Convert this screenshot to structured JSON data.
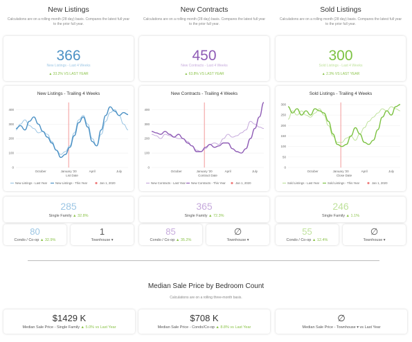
{
  "columns": [
    {
      "title": "New Listings",
      "subtitle": "Calculations are on a rolling month (28 day) basis. Compares the latest full year to the prior full year.",
      "color": "#4a90c4",
      "light_color": "#9cc6e4",
      "stat": {
        "value": "366",
        "label": "New Listings - Last 4 Weeks",
        "change": "▲ 33.2% VS LAST YEAR"
      },
      "single_family": {
        "value": "285",
        "label": "Single Family",
        "change": "▲ 32.8%"
      },
      "condo": {
        "value": "80",
        "label": "Condo / Co-op",
        "change": "▲ 32.9%"
      },
      "townhouse": {
        "value": "1",
        "label": "Townhouse ▾",
        "change": ""
      }
    },
    {
      "title": "New Contracts",
      "subtitle": "Calculations are on a rolling month (28 day) basis. Compares the latest full year to the prior full year.",
      "color": "#8e5bb5",
      "light_color": "#c6aadc",
      "stat": {
        "value": "450",
        "label": "New Contracts - Last 4 Weeks",
        "change": "▲ 63.8% VS LAST YEAR"
      },
      "single_family": {
        "value": "365",
        "label": "Single Family",
        "change": "▲ 72.3%"
      },
      "condo": {
        "value": "85",
        "label": "Condo / Co-op",
        "change": "▲ 35.2%"
      },
      "townhouse": {
        "value": "∅",
        "label": "Townhouse ▾",
        "change": ""
      }
    },
    {
      "title": "Sold Listings",
      "subtitle": "Calculations are on a rolling month (28 day) basis. Compares the latest full year to the prior full year.",
      "color": "#7cc242",
      "light_color": "#bfe29c",
      "stat": {
        "value": "300",
        "label": "Sold Listings - Last 4 Weeks",
        "change": "▲ 2.3% VS LAST YEAR"
      },
      "single_family": {
        "value": "246",
        "label": "Single Family",
        "change": "▲ 1.1%"
      },
      "condo": {
        "value": "55",
        "label": "Condo / Co-op",
        "change": "▲ 12.4%"
      },
      "townhouse": {
        "value": "∅",
        "label": "Townhouse ▾",
        "change": ""
      }
    }
  ],
  "chart_data": [
    {
      "type": "line",
      "title": "New Listings - Trailing 4 Weeks",
      "xlabel": "List Date",
      "x_ticks": [
        "October",
        "January '20",
        "April",
        "July"
      ],
      "y_ticks": [
        0,
        100,
        200,
        300,
        400
      ],
      "ylim": [
        0,
        450
      ],
      "marker_label": "Jan 1, 2020",
      "marker_x": 0.47,
      "series": [
        {
          "name": "New Listings - Last Year",
          "values": [
            260,
            300,
            330,
            290,
            270,
            240,
            250,
            230,
            180,
            120,
            90,
            110,
            150,
            240,
            330,
            360,
            300,
            200,
            150,
            230,
            320,
            380,
            400,
            360,
            300,
            260
          ]
        },
        {
          "name": "New Listings - This Year",
          "values": [
            270,
            290,
            260,
            320,
            350,
            300,
            250,
            210,
            170,
            120,
            70,
            90,
            140,
            220,
            310,
            350,
            280,
            180,
            150,
            260,
            360,
            420,
            390,
            360,
            380,
            366
          ]
        }
      ]
    },
    {
      "type": "line",
      "title": "New Contracts - Trailing 4 Weeks",
      "xlabel": "Contract Date",
      "x_ticks": [
        "October",
        "January '20",
        "April",
        "July"
      ],
      "y_ticks": [
        0,
        100,
        200,
        300,
        400
      ],
      "ylim": [
        0,
        450
      ],
      "marker_label": "Jan 1, 2020",
      "marker_x": 0.47,
      "series": [
        {
          "name": "New Contracts - Last Year",
          "values": [
            230,
            220,
            200,
            230,
            220,
            210,
            200,
            200,
            180,
            150,
            120,
            110,
            130,
            160,
            170,
            160,
            200,
            230,
            210,
            220,
            240,
            260,
            320,
            300,
            280,
            270
          ]
        },
        {
          "name": "New Contracts - This Year",
          "values": [
            250,
            240,
            230,
            250,
            230,
            210,
            230,
            200,
            170,
            150,
            110,
            110,
            140,
            160,
            140,
            150,
            170,
            170,
            130,
            110,
            100,
            130,
            200,
            270,
            350,
            450
          ]
        }
      ]
    },
    {
      "type": "line",
      "title": "Sold Listings - Trailing 4 Weeks",
      "xlabel": "Close Date",
      "x_ticks": [
        "October",
        "January '20",
        "April",
        "July"
      ],
      "y_ticks": [
        0,
        50,
        100,
        150,
        200,
        250,
        300
      ],
      "ylim": [
        0,
        310
      ],
      "marker_label": "Jan 1, 2020",
      "marker_x": 0.47,
      "series": [
        {
          "name": "Sold Listings - Last Year",
          "values": [
            230,
            270,
            250,
            270,
            250,
            240,
            260,
            280,
            250,
            200,
            150,
            120,
            120,
            140,
            150,
            130,
            160,
            190,
            220,
            240,
            260,
            280,
            270,
            290,
            280,
            270
          ]
        },
        {
          "name": "Sold Listings - This Year",
          "values": [
            290,
            260,
            280,
            250,
            270,
            250,
            280,
            270,
            260,
            220,
            160,
            110,
            100,
            110,
            150,
            190,
            160,
            120,
            110,
            130,
            180,
            240,
            270,
            250,
            290,
            300
          ]
        }
      ]
    }
  ],
  "median": {
    "title": "Median Sale Price by Bedroom Count",
    "subtitle": "Calculations are on a rolling three-month basis.",
    "cards": [
      {
        "value": "$1429 K",
        "label": "Median Sale Price - Single Family",
        "change": "▲ 5.0% vs Last Year"
      },
      {
        "value": "$708 K",
        "label": "Median Sale Price - Condo/Co-op",
        "change": "▲ 8.8% vs Last Year"
      },
      {
        "value": "∅",
        "label": "Median Sale Price - Townhouse ▾ vs Last Year",
        "change": ""
      }
    ]
  }
}
